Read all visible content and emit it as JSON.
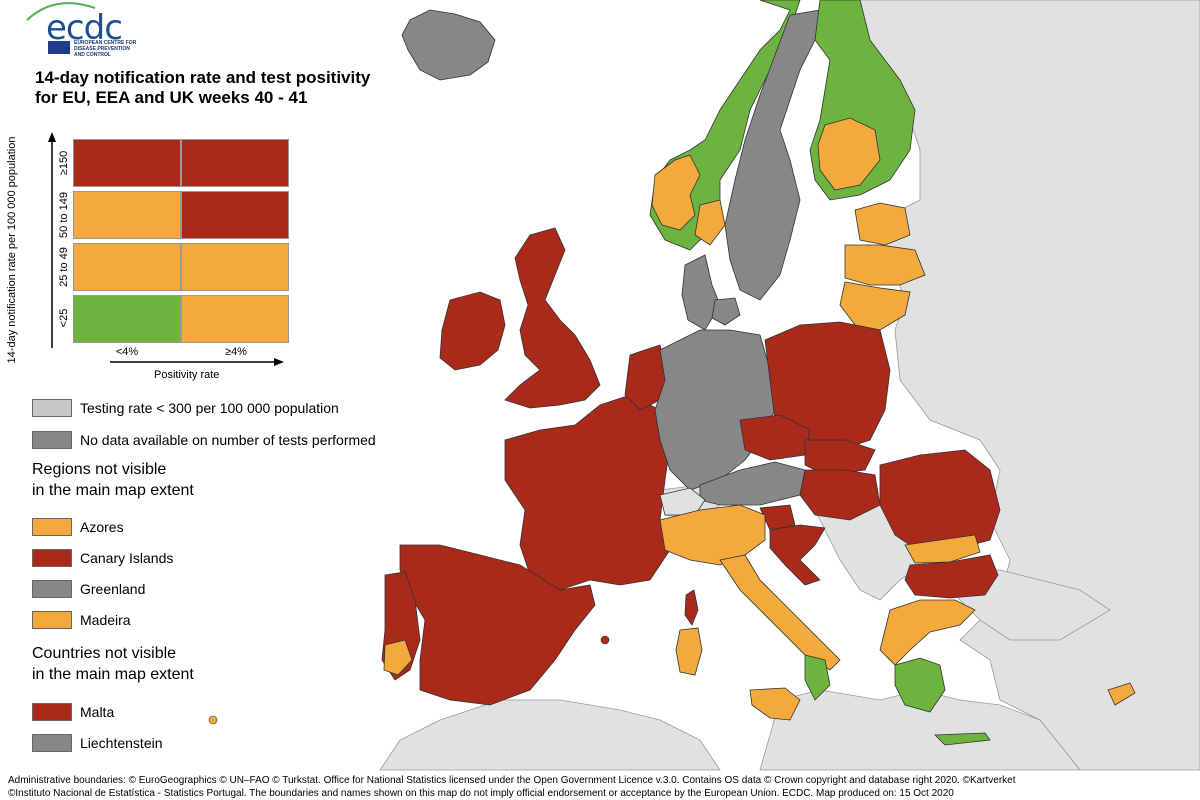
{
  "title_line1": "14-day notification rate and test positivity",
  "title_line2": "for EU, EEA and UK weeks 40 - 41",
  "logo": {
    "name": "ecdc",
    "subtitle_line1": "EUROPEAN CENTRE FOR",
    "subtitle_line2": "DISEASE PREVENTION",
    "subtitle_line3": "AND CONTROL"
  },
  "colors": {
    "red": "#a9291a",
    "orange": "#f3a93c",
    "green": "#6cb33f",
    "light_grey": "#c8c8c8",
    "dark_grey": "#878787",
    "non_eu": "#e1e1e1",
    "sea": "#ffffff"
  },
  "matrix": {
    "y_axis_label": "14-day notification rate per 100 000 population",
    "y_ticks": [
      "≥150",
      "50 to 149",
      "25 to 49",
      "<25"
    ],
    "x_ticks": [
      "<4%",
      "≥4%"
    ],
    "x_axis_label": "Positivity rate",
    "cells": [
      [
        "red",
        "red"
      ],
      [
        "orange",
        "red"
      ],
      [
        "orange",
        "orange"
      ],
      [
        "green",
        "orange"
      ]
    ]
  },
  "legend": {
    "testing_rate": "Testing rate < 300 per 100 000 population",
    "no_data": "No data available on number of tests performed",
    "regions_heading": "Regions not visible\nin the main map extent",
    "regions": [
      {
        "label": "Azores",
        "color": "orange"
      },
      {
        "label": "Canary Islands",
        "color": "red"
      },
      {
        "label": "Greenland",
        "color": "dark_grey"
      },
      {
        "label": "Madeira",
        "color": "orange"
      }
    ],
    "countries_heading": "Countries not visible\nin the main map extent",
    "countries": [
      {
        "label": "Malta",
        "color": "red"
      },
      {
        "label": "Liechtenstein",
        "color": "dark_grey"
      }
    ]
  },
  "footer_line1": "Administrative boundaries: © EuroGeographics © UN–FAO © Turkstat. Office for National Statistics licensed under the Open Government Licence v.3.0. Contains OS data © Crown copyright and database right 2020. ©Kartverket",
  "footer_line2": "©Instituto Nacional de Estatística - Statistics Portugal. The boundaries and names shown on this map do not imply official endorsement or acceptance by the European Union. ECDC. Map produced on: 15 Oct 2020",
  "map_regions": [
    {
      "name": "Iceland",
      "status": "dark_grey"
    },
    {
      "name": "Norway",
      "status": "orange/green"
    },
    {
      "name": "Sweden",
      "status": "dark_grey"
    },
    {
      "name": "Finland",
      "status": "green/orange"
    },
    {
      "name": "Estonia",
      "status": "orange"
    },
    {
      "name": "Latvia",
      "status": "orange"
    },
    {
      "name": "Lithuania",
      "status": "orange"
    },
    {
      "name": "Ireland",
      "status": "red"
    },
    {
      "name": "United Kingdom",
      "status": "red"
    },
    {
      "name": "Denmark",
      "status": "dark_grey"
    },
    {
      "name": "Netherlands",
      "status": "red"
    },
    {
      "name": "Belgium",
      "status": "red"
    },
    {
      "name": "Luxembourg",
      "status": "red"
    },
    {
      "name": "Germany",
      "status": "dark_grey"
    },
    {
      "name": "Poland",
      "status": "red"
    },
    {
      "name": "Czechia",
      "status": "red"
    },
    {
      "name": "Slovakia",
      "status": "red"
    },
    {
      "name": "Austria",
      "status": "dark_grey"
    },
    {
      "name": "Switzerland",
      "status": "non_eu"
    },
    {
      "name": "Hungary",
      "status": "red"
    },
    {
      "name": "Slovenia",
      "status": "red"
    },
    {
      "name": "Croatia",
      "status": "red"
    },
    {
      "name": "Romania",
      "status": "red/orange"
    },
    {
      "name": "Bulgaria",
      "status": "red"
    },
    {
      "name": "Greece",
      "status": "orange/green"
    },
    {
      "name": "Cyprus",
      "status": "orange"
    },
    {
      "name": "France",
      "status": "red"
    },
    {
      "name": "Spain",
      "status": "red"
    },
    {
      "name": "Portugal",
      "status": "red/orange"
    },
    {
      "name": "Italy",
      "status": "orange/green"
    },
    {
      "name": "Corsica",
      "status": "red"
    },
    {
      "name": "Sardinia",
      "status": "orange"
    },
    {
      "name": "Sicily",
      "status": "orange"
    }
  ]
}
